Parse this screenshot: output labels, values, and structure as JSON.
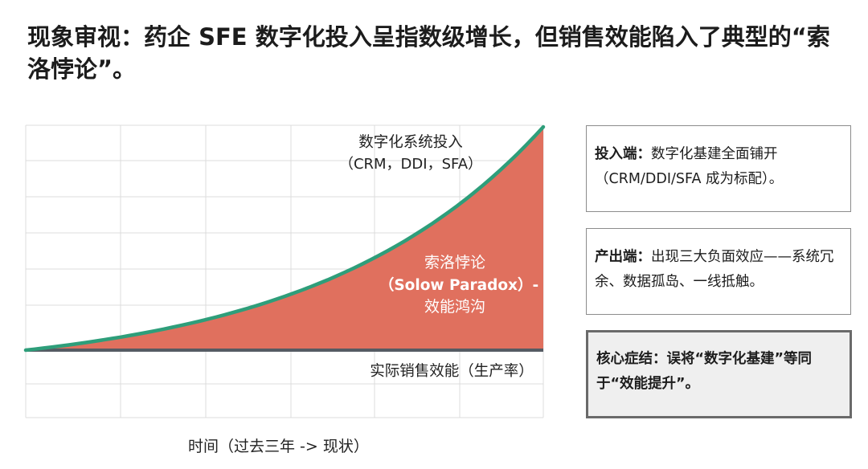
{
  "title": "现象审视：药企 SFE 数字化投入呈指数级增长，但销售效能陷入了典型的“索洛悖论”。",
  "chart_data": {
    "type": "area",
    "series": [
      {
        "name": "数字化系统投入",
        "sub": "（CRM，DDI，SFA）",
        "color": "#2e9e7a",
        "shape": "exponential"
      },
      {
        "name": "实际销售效能（生产率）",
        "color": "#555b63",
        "shape": "flat"
      }
    ],
    "gap_annotation": {
      "line1": "索洛悖论",
      "line2": "（Solow Paradox）-",
      "line3": "效能鸿沟",
      "fill": "#e0705e"
    },
    "xlabel": "时间（过去三年 -> 现状）",
    "grid": true
  },
  "cards": [
    {
      "head": "投入端：",
      "body": "数字化基建全面铺开（CRM/DDI/SFA 成为标配）。",
      "emphasis": false
    },
    {
      "head": "产出端：",
      "body": "出现三大负面效应——系统冗余、数据孤岛、一线抵触。",
      "emphasis": false
    },
    {
      "head": "核心症结：",
      "body": "误将“数字化基建”等同于“效能提升”。",
      "emphasis": true
    }
  ]
}
